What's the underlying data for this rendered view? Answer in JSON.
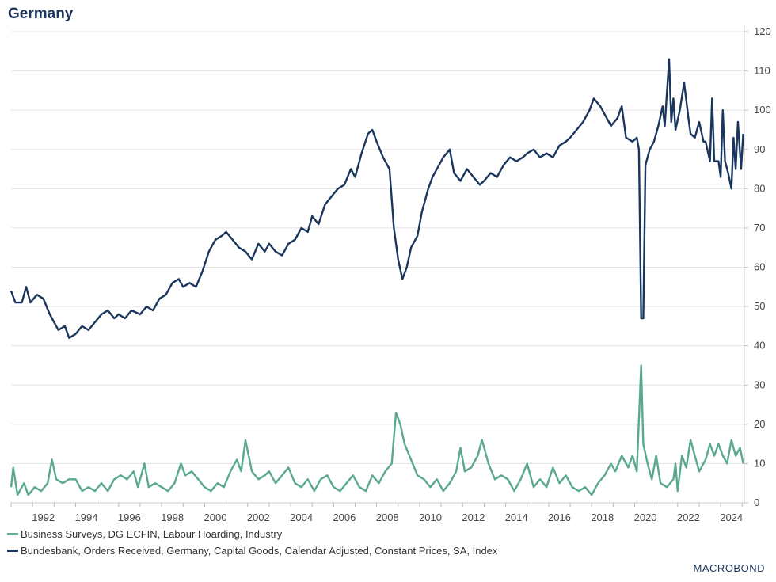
{
  "title": "Germany",
  "colors": {
    "series1": "#5aa891",
    "series2": "#1b365d",
    "grid": "#e3e3e3"
  },
  "logo": "MACROBOND",
  "chart_data": {
    "type": "line",
    "title": "Germany",
    "xlim": [
      1991,
      2025.1
    ],
    "ylim": [
      0,
      120
    ],
    "yticks": [
      0,
      10,
      20,
      30,
      40,
      50,
      60,
      70,
      80,
      90,
      100,
      110,
      120
    ],
    "xticks": [
      1992,
      1994,
      1996,
      1998,
      2000,
      2002,
      2004,
      2006,
      2008,
      2010,
      2012,
      2014,
      2016,
      2018,
      2020,
      2022,
      2024
    ],
    "y_axis_side": "right",
    "grid": true,
    "legend_placement": "bottom-left",
    "series": [
      {
        "name": "Business Surveys, DG ECFIN, Labour Hoarding, Industry",
        "color": "#5aa891",
        "x": [
          1991.0,
          1991.1,
          1991.3,
          1991.6,
          1991.8,
          1992.1,
          1992.4,
          1992.7,
          1992.9,
          1993.1,
          1993.4,
          1993.7,
          1994.0,
          1994.3,
          1994.6,
          1994.9,
          1995.2,
          1995.5,
          1995.8,
          1996.1,
          1996.4,
          1996.7,
          1996.9,
          1997.2,
          1997.4,
          1997.7,
          1998.0,
          1998.3,
          1998.6,
          1998.9,
          1999.1,
          1999.4,
          1999.7,
          2000.0,
          2000.3,
          2000.6,
          2000.9,
          2001.2,
          2001.5,
          2001.7,
          2001.9,
          2002.2,
          2002.5,
          2002.8,
          2003.0,
          2003.3,
          2003.6,
          2003.9,
          2004.2,
          2004.5,
          2004.8,
          2005.1,
          2005.4,
          2005.7,
          2006.0,
          2006.3,
          2006.6,
          2006.9,
          2007.2,
          2007.5,
          2007.8,
          2008.1,
          2008.4,
          2008.7,
          2008.9,
          2009.1,
          2009.3,
          2009.6,
          2009.9,
          2010.2,
          2010.5,
          2010.8,
          2011.1,
          2011.4,
          2011.7,
          2011.9,
          2012.1,
          2012.4,
          2012.7,
          2012.9,
          2013.2,
          2013.5,
          2013.8,
          2014.1,
          2014.4,
          2014.7,
          2015.0,
          2015.3,
          2015.6,
          2015.9,
          2016.2,
          2016.5,
          2016.8,
          2017.1,
          2017.4,
          2017.7,
          2018.0,
          2018.3,
          2018.6,
          2018.9,
          2019.1,
          2019.4,
          2019.7,
          2019.9,
          2020.1,
          2020.3,
          2020.4,
          2020.6,
          2020.8,
          2021.0,
          2021.2,
          2021.5,
          2021.8,
          2021.9,
          2022.0,
          2022.2,
          2022.4,
          2022.6,
          2022.8,
          2023.0,
          2023.3,
          2023.5,
          2023.7,
          2023.9,
          2024.1,
          2024.3,
          2024.5,
          2024.7,
          2024.9,
          2025.05
        ],
        "y": [
          4,
          9,
          2,
          5,
          2,
          4,
          3,
          5,
          11,
          6,
          5,
          6,
          6,
          3,
          4,
          3,
          5,
          3,
          6,
          7,
          6,
          8,
          4,
          10,
          4,
          5,
          4,
          3,
          5,
          10,
          7,
          8,
          6,
          4,
          3,
          5,
          4,
          8,
          11,
          8,
          16,
          8,
          6,
          7,
          8,
          5,
          7,
          9,
          5,
          4,
          6,
          3,
          6,
          7,
          4,
          3,
          5,
          7,
          4,
          3,
          7,
          5,
          8,
          10,
          23,
          20,
          15,
          11,
          7,
          6,
          4,
          6,
          3,
          5,
          8,
          14,
          8,
          9,
          12,
          16,
          10,
          6,
          7,
          6,
          3,
          6,
          10,
          4,
          6,
          4,
          9,
          5,
          7,
          4,
          3,
          4,
          2,
          5,
          7,
          10,
          8,
          12,
          9,
          12,
          8,
          35,
          15,
          10,
          6,
          12,
          5,
          4,
          6,
          10,
          3,
          12,
          9,
          16,
          12,
          8,
          11,
          15,
          12,
          15,
          12,
          10,
          16,
          12,
          14,
          10
        ]
      },
      {
        "name": "Bundesbank, Orders Received, Germany, Capital Goods, Calendar Adjusted, Constant Prices, SA, Index",
        "color": "#1b365d",
        "x": [
          1991.0,
          1991.2,
          1991.5,
          1991.7,
          1991.9,
          1992.2,
          1992.5,
          1992.8,
          1993.0,
          1993.2,
          1993.5,
          1993.7,
          1994.0,
          1994.3,
          1994.6,
          1994.9,
          1995.2,
          1995.5,
          1995.8,
          1996.0,
          1996.3,
          1996.6,
          1997.0,
          1997.3,
          1997.6,
          1997.9,
          1998.2,
          1998.5,
          1998.8,
          1999.0,
          1999.3,
          1999.6,
          1999.9,
          2000.2,
          2000.5,
          2000.8,
          2001.0,
          2001.3,
          2001.6,
          2001.9,
          2002.2,
          2002.5,
          2002.8,
          2003.0,
          2003.3,
          2003.6,
          2003.9,
          2004.2,
          2004.5,
          2004.8,
          2005.0,
          2005.3,
          2005.6,
          2005.9,
          2006.2,
          2006.5,
          2006.8,
          2007.0,
          2007.3,
          2007.6,
          2007.8,
          2008.0,
          2008.3,
          2008.6,
          2008.8,
          2009.0,
          2009.2,
          2009.4,
          2009.6,
          2009.9,
          2010.1,
          2010.4,
          2010.6,
          2010.9,
          2011.1,
          2011.4,
          2011.6,
          2011.9,
          2012.2,
          2012.5,
          2012.8,
          2013.0,
          2013.3,
          2013.6,
          2013.9,
          2014.2,
          2014.5,
          2014.8,
          2015.0,
          2015.3,
          2015.6,
          2015.9,
          2016.2,
          2016.5,
          2016.8,
          2017.0,
          2017.3,
          2017.6,
          2017.9,
          2018.1,
          2018.4,
          2018.7,
          2018.9,
          2019.2,
          2019.4,
          2019.6,
          2019.9,
          2020.1,
          2020.2,
          2020.3,
          2020.4,
          2020.5,
          2020.7,
          2020.9,
          2021.1,
          2021.3,
          2021.4,
          2021.6,
          2021.7,
          2021.8,
          2021.9,
          2022.1,
          2022.3,
          2022.5,
          2022.6,
          2022.8,
          2023.0,
          2023.2,
          2023.3,
          2023.5,
          2023.6,
          2023.7,
          2023.9,
          2024.0,
          2024.1,
          2024.2,
          2024.35,
          2024.5,
          2024.6,
          2024.7,
          2024.8,
          2024.95,
          2025.05
        ],
        "y": [
          54,
          51,
          51,
          55,
          51,
          53,
          52,
          48,
          46,
          44,
          45,
          42,
          43,
          45,
          44,
          46,
          48,
          49,
          47,
          48,
          47,
          49,
          48,
          50,
          49,
          52,
          53,
          56,
          57,
          55,
          56,
          55,
          59,
          64,
          67,
          68,
          69,
          67,
          65,
          64,
          62,
          66,
          64,
          66,
          64,
          63,
          66,
          67,
          70,
          69,
          73,
          71,
          76,
          78,
          80,
          81,
          85,
          83,
          89,
          94,
          95,
          92,
          88,
          85,
          70,
          62,
          57,
          60,
          65,
          68,
          74,
          80,
          83,
          86,
          88,
          90,
          84,
          82,
          85,
          83,
          81,
          82,
          84,
          83,
          86,
          88,
          87,
          88,
          89,
          90,
          88,
          89,
          88,
          91,
          92,
          93,
          95,
          97,
          100,
          103,
          101,
          98,
          96,
          98,
          101,
          93,
          92,
          93,
          90,
          47,
          47,
          86,
          90,
          92,
          96,
          101,
          96,
          113,
          97,
          103,
          95,
          100,
          107,
          98,
          94,
          93,
          97,
          92,
          92,
          87,
          103,
          87,
          87,
          83,
          100,
          87,
          84,
          80,
          93,
          85,
          97,
          85,
          94
        ]
      }
    ]
  }
}
